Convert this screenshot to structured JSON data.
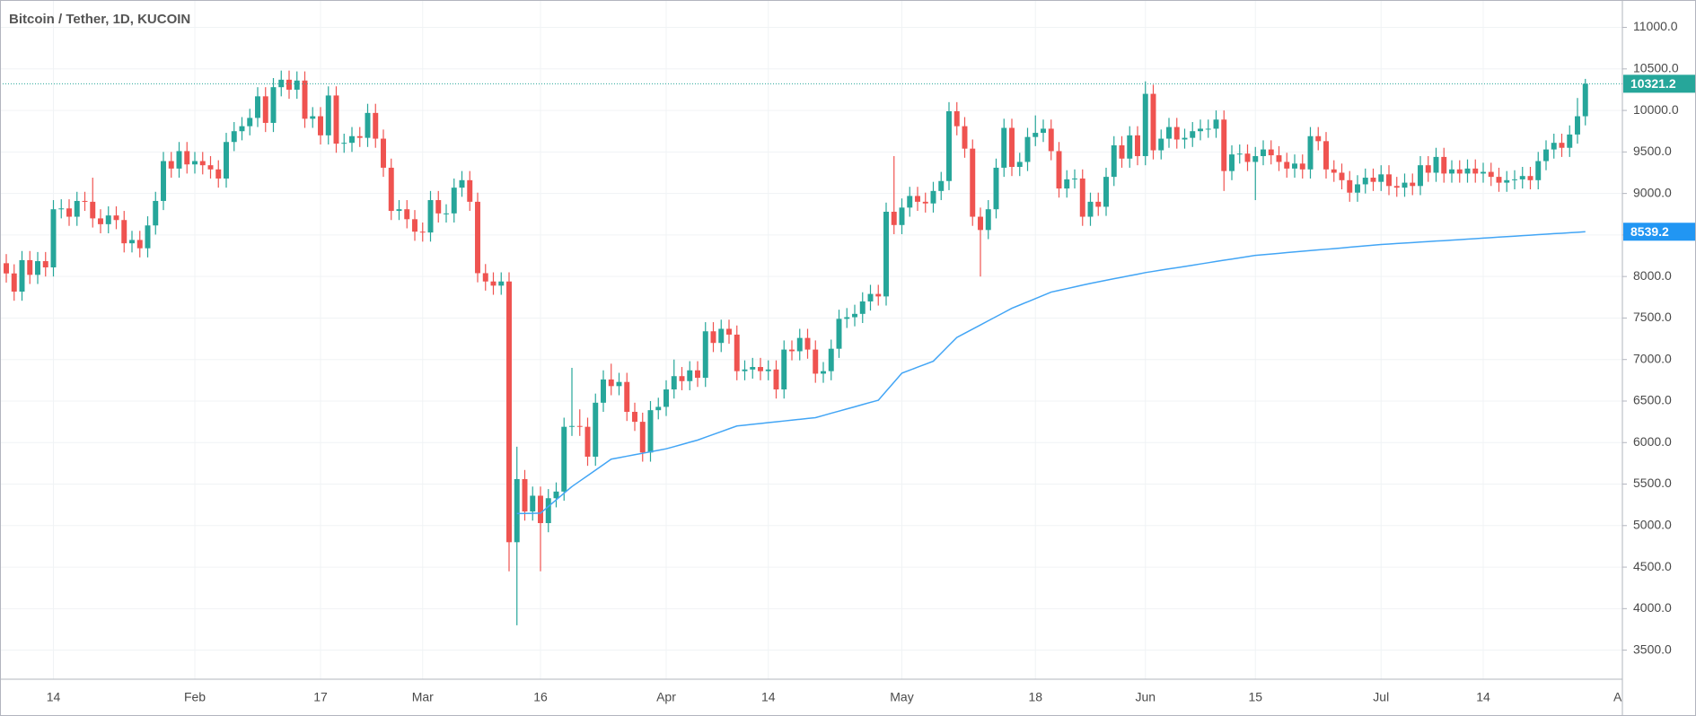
{
  "chart_data": {
    "type": "candlestick",
    "title": "Bitcoin / Tether, 1D, KUCOIN",
    "up_color": "#26a69a",
    "down_color": "#ef5350",
    "grid": true,
    "ylim": [
      3150,
      11330
    ],
    "yticks": [
      {
        "value": 3500,
        "label": "3500.0"
      },
      {
        "value": 4000,
        "label": "4000.0"
      },
      {
        "value": 4500,
        "label": "4500.0"
      },
      {
        "value": 5000,
        "label": "5000.0"
      },
      {
        "value": 5500,
        "label": "5500.0"
      },
      {
        "value": 6000,
        "label": "6000.0"
      },
      {
        "value": 6500,
        "label": "6500.0"
      },
      {
        "value": 7000,
        "label": "7000.0"
      },
      {
        "value": 7500,
        "label": "7500.0"
      },
      {
        "value": 8000,
        "label": "8000.0"
      },
      {
        "value": 8500,
        "label": "8500.0"
      },
      {
        "value": 9000,
        "label": "9000.0"
      },
      {
        "value": 9500,
        "label": "9500.0"
      },
      {
        "value": 10000,
        "label": "10000.0"
      },
      {
        "value": 10500,
        "label": "10500.0"
      },
      {
        "value": 11000,
        "label": "11000.0"
      }
    ],
    "categories": [
      null,
      null,
      null,
      null,
      null,
      null,
      "14",
      null,
      null,
      null,
      null,
      null,
      null,
      null,
      null,
      null,
      null,
      null,
      null,
      null,
      null,
      null,
      null,
      null,
      "Feb",
      null,
      null,
      null,
      null,
      null,
      null,
      null,
      null,
      null,
      null,
      null,
      null,
      null,
      null,
      null,
      "17",
      null,
      null,
      null,
      null,
      null,
      null,
      null,
      null,
      null,
      null,
      null,
      null,
      "Mar",
      null,
      null,
      null,
      null,
      null,
      null,
      null,
      null,
      null,
      null,
      null,
      null,
      null,
      null,
      "16",
      null,
      null,
      null,
      null,
      null,
      null,
      null,
      null,
      null,
      null,
      null,
      null,
      null,
      null,
      null,
      "Apr",
      null,
      null,
      null,
      null,
      null,
      null,
      null,
      null,
      null,
      null,
      null,
      null,
      "14",
      null,
      null,
      null,
      null,
      null,
      null,
      null,
      null,
      null,
      null,
      null,
      null,
      null,
      null,
      null,
      null,
      "May",
      null,
      null,
      null,
      null,
      null,
      null,
      null,
      null,
      null,
      null,
      null,
      null,
      null,
      null,
      null,
      null,
      "18",
      null,
      null,
      null,
      null,
      null,
      null,
      null,
      null,
      null,
      null,
      null,
      null,
      null,
      "Jun",
      null,
      null,
      null,
      null,
      null,
      null,
      null,
      null,
      null,
      null,
      null,
      null,
      null,
      "15",
      null,
      null,
      null,
      null,
      null,
      null,
      null,
      null,
      null,
      null,
      null,
      null,
      null,
      null,
      null,
      "Jul",
      null,
      null,
      null,
      null,
      null,
      null,
      null,
      null,
      null,
      null,
      null,
      null,
      "14",
      null,
      null,
      null,
      null,
      null,
      null,
      null,
      null,
      null,
      null,
      null,
      null,
      null,
      null,
      null,
      null,
      null,
      "Aug"
    ],
    "open": [
      8160,
      8037,
      7818,
      8197,
      8020,
      8185,
      8110,
      8810,
      8820,
      8720,
      8910,
      8900,
      8700,
      8630,
      8735,
      8680,
      8400,
      8440,
      8340,
      8615,
      8910,
      9390,
      9300,
      9510,
      9350,
      9390,
      9340,
      9290,
      9180,
      9620,
      9750,
      9810,
      9910,
      10170,
      9850,
      10280,
      10370,
      10250,
      10360,
      9900,
      9930,
      9700,
      10180,
      9600,
      9610,
      9690,
      9670,
      9970,
      9660,
      9310,
      8790,
      8810,
      8690,
      8540,
      8530,
      8920,
      8760,
      8760,
      9070,
      9160,
      8900,
      8040,
      7940,
      7890,
      7940,
      4800,
      5560,
      5170,
      5360,
      5030,
      5330,
      5410,
      6190,
      6200,
      6190,
      5830,
      6480,
      6760,
      6680,
      6730,
      6370,
      6250,
      5880,
      6390,
      6430,
      6640,
      6800,
      6740,
      6870,
      6780,
      7340,
      7200,
      7370,
      7300,
      6860,
      6880,
      6910,
      6860,
      6880,
      6640,
      7120,
      7100,
      7260,
      7120,
      6830,
      6860,
      7130,
      7490,
      7510,
      7550,
      7700,
      7790,
      7760,
      8780,
      8620,
      8830,
      8970,
      8900,
      8880,
      9030,
      9150,
      9990,
      9810,
      9540,
      8720,
      8560,
      8810,
      9310,
      9790,
      9320,
      9380,
      9680,
      9730,
      9780,
      9510,
      9060,
      9170,
      9180,
      8720,
      8900,
      8840,
      9200,
      9580,
      9420,
      9700,
      9450,
      10200,
      9520,
      9660,
      9800,
      9650,
      9670,
      9750,
      9780,
      9780,
      9890,
      9270,
      9470,
      9480,
      9380,
      9450,
      9530,
      9460,
      9380,
      9300,
      9360,
      9290,
      9690,
      9630,
      9290,
      9250,
      9160,
      9010,
      9110,
      9190,
      9140,
      9230,
      9090,
      9070,
      9130,
      9090,
      9340,
      9250,
      9440,
      9240,
      9290,
      9240,
      9300,
      9240,
      9260,
      9200,
      9130,
      9160,
      9170,
      9210,
      9160,
      9390,
      9530,
      9610,
      9550,
      9710,
      9930,
      null,
      null,
      null,
      null,
      null
    ],
    "high": [
      8270,
      8147,
      8307,
      8307,
      8295,
      8295,
      8920,
      8930,
      8930,
      9020,
      9020,
      9190,
      8810,
      8845,
      8845,
      8790,
      8550,
      8550,
      8725,
      9020,
      9500,
      9500,
      9620,
      9620,
      9500,
      9500,
      9450,
      9400,
      9730,
      9860,
      9920,
      10020,
      10280,
      10280,
      10390,
      10480,
      10480,
      10470,
      10470,
      10040,
      10040,
      10290,
      10290,
      9720,
      9800,
      9800,
      10080,
      10080,
      9770,
      9420,
      8920,
      8920,
      8800,
      8650,
      9030,
      9030,
      8870,
      9180,
      9270,
      9270,
      9010,
      8150,
      8050,
      8050,
      8050,
      5950,
      5670,
      5470,
      5470,
      5440,
      5520,
      6300,
      6900,
      6400,
      6300,
      6590,
      6870,
      6950,
      6840,
      6840,
      6480,
      6360,
      6500,
      6540,
      6750,
      7000,
      6910,
      6980,
      6980,
      7450,
      7450,
      7480,
      7480,
      7410,
      6990,
      7020,
      7020,
      6990,
      6990,
      7230,
      7230,
      7370,
      7370,
      7230,
      6970,
      7240,
      7600,
      7620,
      7660,
      7810,
      7900,
      7900,
      8890,
      9450,
      8940,
      9080,
      9080,
      9010,
      9140,
      9260,
      10100,
      10100,
      9920,
      9650,
      8830,
      8920,
      9420,
      9900,
      9900,
      9490,
      9790,
      9940,
      9890,
      9890,
      9620,
      9280,
      9290,
      9290,
      9010,
      9010,
      9310,
      9690,
      9690,
      9810,
      9810,
      10350,
      10310,
      9770,
      9910,
      9910,
      9780,
      9860,
      9890,
      9890,
      10000,
      10000,
      9580,
      9590,
      9590,
      9560,
      9640,
      9640,
      9570,
      9490,
      9470,
      9470,
      9800,
      9800,
      9740,
      9400,
      9360,
      9270,
      9220,
      9300,
      9300,
      9340,
      9340,
      9200,
      9240,
      9240,
      9450,
      9450,
      9550,
      9550,
      9400,
      9400,
      9410,
      9410,
      9370,
      9370,
      9310,
      9270,
      9280,
      9320,
      9320,
      9500,
      9640,
      9720,
      9720,
      9820,
      10150,
      10380,
      null,
      null,
      null,
      null,
      null
    ],
    "low": [
      7927,
      7708,
      7708,
      7910,
      7910,
      8000,
      8000,
      8700,
      8610,
      8610,
      8790,
      8590,
      8520,
      8520,
      8570,
      8290,
      8290,
      8230,
      8230,
      8505,
      8800,
      9190,
      9190,
      9240,
      9240,
      9230,
      9180,
      9070,
      9070,
      9510,
      9640,
      9700,
      9800,
      9740,
      9740,
      10170,
      10140,
      10140,
      9790,
      9790,
      9590,
      9590,
      9490,
      9490,
      9500,
      9560,
      9560,
      9550,
      9200,
      8680,
      8680,
      8580,
      8430,
      8420,
      8420,
      8650,
      8650,
      8650,
      8960,
      8790,
      7930,
      7830,
      7780,
      7780,
      4450,
      3800,
      5060,
      5060,
      4450,
      4920,
      5220,
      5300,
      6080,
      6080,
      5720,
      5720,
      6370,
      6570,
      6570,
      6260,
      6140,
      5770,
      5770,
      6280,
      6320,
      6530,
      6630,
      6630,
      6670,
      6670,
      7090,
      7090,
      7190,
      6750,
      6750,
      6770,
      6750,
      6750,
      6530,
      6530,
      6990,
      6990,
      7010,
      6720,
      6720,
      6750,
      7020,
      7380,
      7400,
      7440,
      7590,
      7650,
      7650,
      8510,
      8510,
      8720,
      8790,
      8770,
      8770,
      8920,
      9040,
      9700,
      9430,
      8610,
      8000,
      8450,
      8700,
      9200,
      9210,
      9210,
      9270,
      9570,
      9620,
      9400,
      8950,
      8950,
      9060,
      8610,
      8610,
      8730,
      8730,
      9090,
      9310,
      9310,
      9340,
      9340,
      9410,
      9410,
      9550,
      9540,
      9540,
      9560,
      9640,
      9670,
      9670,
      9030,
      9160,
      9360,
      9270,
      8920,
      9340,
      9350,
      9270,
      9190,
      9190,
      9180,
      9180,
      9520,
      9180,
      9140,
      9050,
      8900,
      8900,
      9000,
      9030,
      9030,
      8980,
      8960,
      8960,
      8980,
      8980,
      9140,
      9140,
      9130,
      9130,
      9130,
      9130,
      9130,
      9130,
      9090,
      9020,
      9020,
      9050,
      9060,
      9050,
      9050,
      9280,
      9420,
      9440,
      9440,
      9600,
      9820,
      null,
      null,
      null,
      null,
      null
    ],
    "close": [
      8037,
      7818,
      8197,
      8020,
      8185,
      8110,
      8810,
      8820,
      8720,
      8910,
      8900,
      8700,
      8630,
      8735,
      8680,
      8400,
      8440,
      8340,
      8615,
      8910,
      9390,
      9300,
      9510,
      9350,
      9390,
      9340,
      9290,
      9180,
      9620,
      9750,
      9810,
      9910,
      10170,
      9850,
      10280,
      10370,
      10250,
      10360,
      9900,
      9930,
      9700,
      10180,
      9600,
      9610,
      9690,
      9670,
      9970,
      9660,
      9310,
      8790,
      8810,
      8690,
      8540,
      8530,
      8920,
      8760,
      8760,
      9070,
      9160,
      8900,
      8040,
      7940,
      7890,
      7940,
      4800,
      5560,
      5170,
      5360,
      5030,
      5330,
      5410,
      6190,
      6200,
      6190,
      5830,
      6480,
      6760,
      6680,
      6730,
      6370,
      6250,
      5880,
      6390,
      6430,
      6640,
      6800,
      6740,
      6870,
      6780,
      7340,
      7200,
      7370,
      7300,
      6860,
      6880,
      6910,
      6860,
      6880,
      6640,
      7120,
      7100,
      7260,
      7120,
      6830,
      6860,
      7130,
      7490,
      7510,
      7550,
      7700,
      7790,
      7760,
      8780,
      8620,
      8830,
      8970,
      8900,
      8880,
      9030,
      9150,
      9990,
      9810,
      9540,
      8720,
      8560,
      8810,
      9310,
      9790,
      9320,
      9380,
      9680,
      9730,
      9780,
      9510,
      9060,
      9170,
      9180,
      8720,
      8900,
      8840,
      9200,
      9580,
      9420,
      9700,
      9450,
      10200,
      9520,
      9660,
      9800,
      9650,
      9670,
      9750,
      9780,
      9780,
      9890,
      9270,
      9470,
      9480,
      9380,
      9450,
      9530,
      9460,
      9380,
      9300,
      9360,
      9290,
      9690,
      9630,
      9290,
      9250,
      9160,
      9010,
      9110,
      9190,
      9140,
      9230,
      9090,
      9070,
      9130,
      9090,
      9340,
      9250,
      9440,
      9240,
      9290,
      9240,
      9300,
      9240,
      9260,
      9200,
      9130,
      9160,
      9170,
      9210,
      9160,
      9390,
      9530,
      9610,
      9550,
      9710,
      9930,
      10321.2,
      null,
      null,
      null,
      null,
      null
    ],
    "ma": {
      "color": "#42a5f5",
      "values": [
        null,
        null,
        null,
        null,
        null,
        null,
        null,
        null,
        null,
        null,
        null,
        null,
        null,
        null,
        null,
        null,
        null,
        null,
        null,
        null,
        null,
        null,
        null,
        null,
        null,
        null,
        null,
        null,
        null,
        null,
        null,
        null,
        null,
        null,
        null,
        null,
        null,
        null,
        null,
        null,
        null,
        null,
        null,
        null,
        null,
        null,
        null,
        null,
        null,
        null,
        null,
        null,
        null,
        null,
        null,
        null,
        null,
        null,
        null,
        null,
        null,
        null,
        null,
        null,
        null,
        5145,
        5147,
        5148,
        5150,
        5230,
        5310,
        5390,
        5470,
        5536,
        5602,
        5668,
        5734,
        5800,
        5818,
        5836,
        5854,
        5871,
        5889,
        5907,
        5925,
        5951,
        5977,
        6004,
        6030,
        6064,
        6098,
        6132,
        6166,
        6200,
        6210,
        6220,
        6230,
        6240,
        6250,
        6260,
        6270,
        6280,
        6290,
        6300,
        6326,
        6353,
        6379,
        6405,
        6431,
        6458,
        6484,
        6510,
        6619,
        6727,
        6836,
        6872,
        6908,
        6944,
        6980,
        7075,
        7171,
        7266,
        7316,
        7366,
        7416,
        7467,
        7517,
        7567,
        7617,
        7656,
        7695,
        7734,
        7773,
        7812,
        7833,
        7854,
        7875,
        7896,
        7917,
        7936,
        7954,
        7973,
        7991,
        8010,
        8028,
        8047,
        8062,
        8077,
        8092,
        8106,
        8121,
        8136,
        8151,
        8166,
        8181,
        8196,
        8210,
        8225,
        8240,
        8255,
        8263,
        8271,
        8279,
        8288,
        8296,
        8304,
        8312,
        8320,
        8328,
        8336,
        8344,
        8353,
        8361,
        8369,
        8377,
        8385,
        8391,
        8397,
        8403,
        8409,
        8415,
        8421,
        8427,
        8432,
        8438,
        8444,
        8450,
        8456,
        8462,
        8468,
        8474,
        8480,
        8486,
        8492,
        8498,
        8504,
        8510,
        8516,
        8521,
        8527,
        8533,
        8539.2,
        null,
        null,
        null,
        null,
        null
      ]
    }
  }
}
